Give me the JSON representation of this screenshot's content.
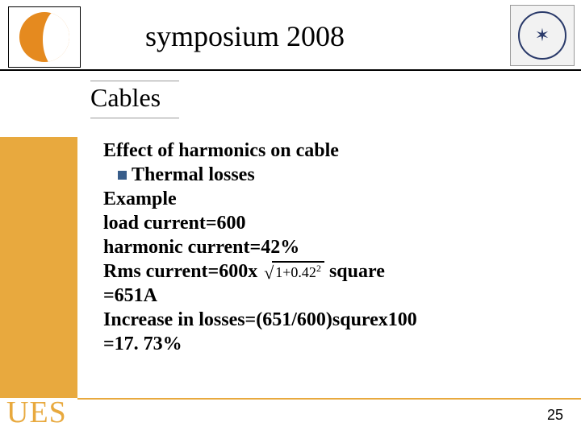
{
  "header": {
    "title": "symposium 2008",
    "logo_bg": "#e58a1f",
    "badge_glyph": "✶",
    "badge_color": "#2a3a6a"
  },
  "subheader": "Cables",
  "sidebar_color": "#e8a93e",
  "body": {
    "line1": "Effect of harmonics on cable",
    "bullet1": "Thermal losses",
    "line3": "Example",
    "line4": "load current=600",
    "line5": " harmonic current=42%",
    "line6_pre": "Rms current=600x",
    "sqrt_expr_a": "1+0.42",
    "sqrt_expr_exp": "2",
    "line6_post": "square",
    "line7": "=651A",
    "line8": "Increase in losses=(651/600)squrex100",
    "line9": "=17. 73%"
  },
  "footer": {
    "brand": "UES",
    "page": "25",
    "accent": "#e8a93e"
  }
}
